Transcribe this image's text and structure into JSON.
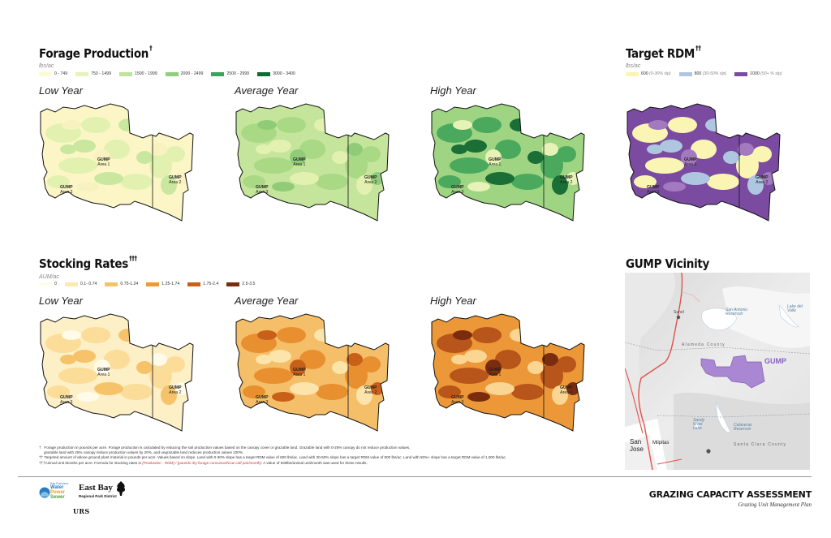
{
  "forage": {
    "title": "Forage Production",
    "title_mark": "†",
    "units": "lbs/ac",
    "legend": [
      {
        "label": "0 - 749",
        "color": "#fdfbd3"
      },
      {
        "label": "750 - 1499",
        "color": "#e6f3b8"
      },
      {
        "label": "1500 - 1999",
        "color": "#bfe39a"
      },
      {
        "label": "2000 - 2499",
        "color": "#8fcf7c"
      },
      {
        "label": "2500 - 2999",
        "color": "#3da55a"
      },
      {
        "label": "3000 - 3400",
        "color": "#106b33"
      }
    ],
    "panels": [
      {
        "label": "Low Year",
        "base": "#fcf6c6",
        "spot1": "#e3f1b0",
        "spot2": "#c9e79e",
        "spot3": "#f7f2bf"
      },
      {
        "label": "Average Year",
        "base": "#c4e59b",
        "spot1": "#a9d985",
        "spot2": "#e3f1b0",
        "spot3": "#90cc78"
      },
      {
        "label": "High Year",
        "base": "#9fd582",
        "spot1": "#4ba95e",
        "spot2": "#1b6e36",
        "spot3": "#e6f2b6"
      }
    ]
  },
  "rdm": {
    "title": "Target RDM",
    "title_mark": "††",
    "units": "lbs/ac",
    "legend": [
      {
        "label": "600",
        "note": "(0-30% slp)",
        "color": "#fbf5b4"
      },
      {
        "label": "800",
        "note": "(30-50% slp)",
        "color": "#aec6e0"
      },
      {
        "label": "1000",
        "note": "(50+ % slp)",
        "color": "#7a4ba0"
      }
    ],
    "panel": {
      "base": "#7a4ba0",
      "spot1": "#fbf5b4",
      "spot2": "#aec6e0",
      "spot3": "#a37ac0"
    }
  },
  "stocking": {
    "title": "Stocking Rates",
    "title_mark": "†††",
    "units": "AUM/ac",
    "legend": [
      {
        "label": "0",
        "color": "#fffcea"
      },
      {
        "label": "0.1- 0.74",
        "color": "#fde8b0"
      },
      {
        "label": "0.75-1.24",
        "color": "#f6c36a"
      },
      {
        "label": "1.25-1.74",
        "color": "#ed9a36"
      },
      {
        "label": "1.75-2.4",
        "color": "#c9601a"
      },
      {
        "label": "2.5-3.5",
        "color": "#7a2c0e"
      }
    ],
    "panels": [
      {
        "label": "Low Year",
        "base": "#fdefc6",
        "spot1": "#fbdc98",
        "spot2": "#f6c36a",
        "spot3": "#fffbe8"
      },
      {
        "label": "Average Year",
        "base": "#f5be68",
        "spot1": "#e88f30",
        "spot2": "#fde4aa",
        "spot3": "#c9601a"
      },
      {
        "label": "High Year",
        "base": "#ec9838",
        "spot1": "#b8551a",
        "spot2": "#fbd693",
        "spot3": "#7a2c0e"
      }
    ]
  },
  "area_labels": {
    "area1": {
      "name": "GUMP",
      "sub": "Area 1"
    },
    "area2": {
      "name": "GUMP",
      "sub": "Area 2"
    },
    "area3": {
      "name": "GUMP",
      "sub": "Area 3"
    }
  },
  "vicinity": {
    "title": "GUMP Vicinity",
    "gump_label": "GUMP",
    "places": {
      "sunol": "Sunol",
      "san_antonio": "San Antonio Reservoir",
      "lake_del_valle": "Lake del Valle",
      "alameda_county": "Alameda County",
      "santa_clara_county": "Santa Clara County",
      "sandy_wool": "Sandy Wool Lake",
      "calaveras": "Calaveras Reservoir",
      "milpitas": "Milpitas",
      "san_jose": "San Jose"
    },
    "colors": {
      "gump": "#a57fd1",
      "road": "#e0524c",
      "water": "#ffffff"
    }
  },
  "footnotes": {
    "f1_mark": "†",
    "f1_line1": "Forage production in pounds per acre. Forage production is calculated by reducing the soil production values based on the canopy cover or grazable land. Grazable land with 0-25% canopy do not reduce production values,",
    "f1_line2": "grazable land with 25% canopy reduce production values by 20%, and ungrazable land reduces production values 100%.",
    "f2_mark": "††",
    "f2": "Targeted amount of above ground plant material in pounds per acre. Values based on slope. Land with 0-30% slope has a target RDM value of 600 lbs/ac. Land with 30-50% slope has a target RDM value of 800 lbs/ac. Land with 50%+ slope has a target RDM value of 1,000 lbs/ac.",
    "f3_mark": "†††",
    "f3_pre": "Animal Unit Months per acre. Formula for stocking rates is",
    "f3_formula": "(Production - RDM) / (pounds dry forage consumed/cow calf pair/month)",
    "f3_post": ". A value of 930lbs/animal unit/month was used for these results."
  },
  "logos": {
    "sfpuc_line1": "San Francisco",
    "sfpuc_line2": "Water",
    "sfpuc_line3": "Power",
    "sfpuc_line4": "Sewer",
    "ebrpd_line1": "East Bay",
    "ebrpd_line2": "Regional Park District",
    "urs": "URS"
  },
  "report": {
    "title": "GRAZING CAPACITY ASSESSMENT",
    "subtitle": "Grazing Unit Management Plan"
  }
}
